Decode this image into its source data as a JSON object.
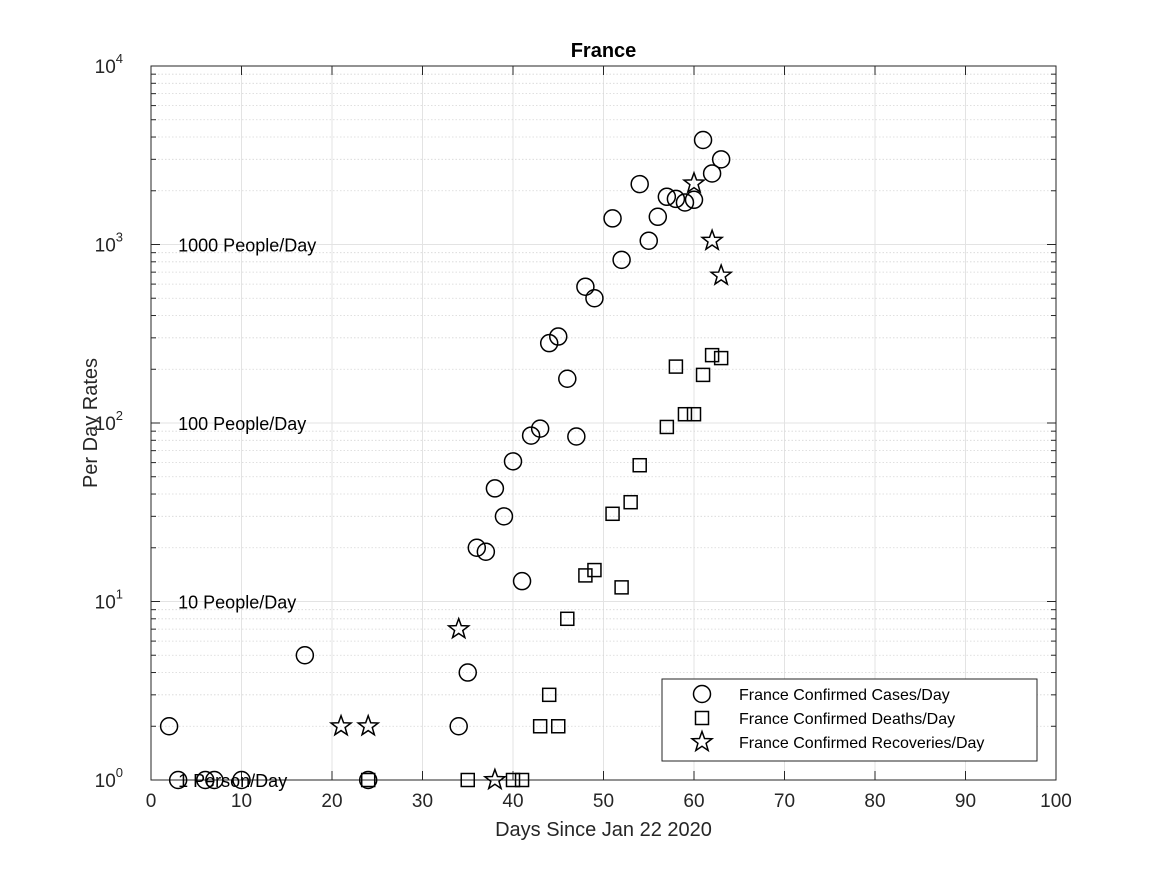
{
  "chart_data": {
    "type": "scatter",
    "title": "France",
    "xlabel": "Days Since Jan 22 2020",
    "ylabel": "Per Day Rates",
    "xlim": [
      0,
      100
    ],
    "ylim": [
      1,
      10000
    ],
    "yscale": "log",
    "grid": true,
    "minor_grid_y": true,
    "x_ticks": [
      "0",
      "10",
      "20",
      "30",
      "40",
      "50",
      "60",
      "70",
      "80",
      "90",
      "100"
    ],
    "y_ticks": [
      {
        "base": "10",
        "exp": "0"
      },
      {
        "base": "10",
        "exp": "1"
      },
      {
        "base": "10",
        "exp": "2"
      },
      {
        "base": "10",
        "exp": "3"
      },
      {
        "base": "10",
        "exp": "4"
      }
    ],
    "legend_position": "bottom-right",
    "annotations": [
      {
        "text": "1 Person/Day",
        "x": 3,
        "y": 1
      },
      {
        "text": "10 People/Day",
        "x": 3,
        "y": 10
      },
      {
        "text": "100 People/Day",
        "x": 3,
        "y": 100
      },
      {
        "text": "1000 People/Day",
        "x": 3,
        "y": 1000
      }
    ],
    "series": [
      {
        "name": "France Confirmed Cases/Day",
        "marker": "circle",
        "points": [
          [
            2,
            2
          ],
          [
            3,
            1
          ],
          [
            6,
            1
          ],
          [
            7,
            1
          ],
          [
            10,
            1
          ],
          [
            17,
            5
          ],
          [
            24,
            1
          ],
          [
            34,
            2
          ],
          [
            35,
            4
          ],
          [
            36,
            20
          ],
          [
            37,
            19
          ],
          [
            38,
            43
          ],
          [
            39,
            30
          ],
          [
            40,
            61
          ],
          [
            41,
            13
          ],
          [
            42,
            85
          ],
          [
            43,
            93
          ],
          [
            44,
            280
          ],
          [
            45,
            305
          ],
          [
            46,
            177
          ],
          [
            47,
            84
          ],
          [
            48,
            580
          ],
          [
            49,
            500
          ],
          [
            51,
            1400
          ],
          [
            52,
            820
          ],
          [
            54,
            2180
          ],
          [
            55,
            1050
          ],
          [
            56,
            1430
          ],
          [
            57,
            1850
          ],
          [
            58,
            1800
          ],
          [
            59,
            1720
          ],
          [
            60,
            1780
          ],
          [
            61,
            3850
          ],
          [
            62,
            2500
          ],
          [
            63,
            3000
          ]
        ]
      },
      {
        "name": "France Confirmed Deaths/Day",
        "marker": "square",
        "points": [
          [
            24,
            1
          ],
          [
            35,
            1
          ],
          [
            40,
            1
          ],
          [
            41,
            1
          ],
          [
            43,
            2
          ],
          [
            44,
            3
          ],
          [
            45,
            2
          ],
          [
            46,
            8
          ],
          [
            48,
            14
          ],
          [
            49,
            15
          ],
          [
            51,
            31
          ],
          [
            52,
            12
          ],
          [
            53,
            36
          ],
          [
            54,
            58
          ],
          [
            57,
            95
          ],
          [
            58,
            207
          ],
          [
            59,
            112
          ],
          [
            60,
            112
          ],
          [
            61,
            186
          ],
          [
            62,
            240
          ],
          [
            63,
            231
          ]
        ]
      },
      {
        "name": "France Confirmed Recoveries/Day",
        "marker": "star",
        "points": [
          [
            21,
            2
          ],
          [
            24,
            2
          ],
          [
            34,
            7
          ],
          [
            38,
            1
          ],
          [
            60,
            2200
          ],
          [
            62,
            1050
          ],
          [
            63,
            670
          ]
        ]
      }
    ]
  }
}
